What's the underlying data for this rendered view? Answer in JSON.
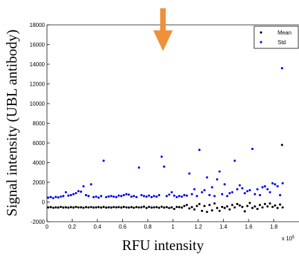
{
  "chart_data": {
    "type": "scatter",
    "ylabel": "Signal intensity (UBL antibody)",
    "xlabel": "RFU intensity",
    "x_multiplier": "x 10",
    "x_multiplier_exp": "5",
    "xlim": [
      0,
      2.0
    ],
    "ylim": [
      -2000,
      18000
    ],
    "x_ticks": [
      "0",
      "0.2",
      "0.4",
      "0.6",
      "0.8",
      "1",
      "1.2",
      "1.4",
      "1.6",
      "1.8"
    ],
    "y_ticks": [
      "-2000",
      "0",
      "2000",
      "4000",
      "6000",
      "8000",
      "10000",
      "12000",
      "14000",
      "16000",
      "18000"
    ],
    "legend_position": "top-right",
    "annotation": {
      "shape": "down-arrow",
      "color": "#f0903a"
    },
    "series": [
      {
        "name": "Mean",
        "color": "#000000",
        "points": [
          [
            0.01,
            -550
          ],
          [
            0.03,
            -520
          ],
          [
            0.05,
            -580
          ],
          [
            0.07,
            -540
          ],
          [
            0.09,
            -560
          ],
          [
            0.11,
            -500
          ],
          [
            0.13,
            -560
          ],
          [
            0.15,
            -530
          ],
          [
            0.17,
            -570
          ],
          [
            0.19,
            -520
          ],
          [
            0.21,
            -560
          ],
          [
            0.23,
            -500
          ],
          [
            0.25,
            -550
          ],
          [
            0.27,
            -530
          ],
          [
            0.29,
            -580
          ],
          [
            0.31,
            -520
          ],
          [
            0.33,
            -550
          ],
          [
            0.35,
            -510
          ],
          [
            0.37,
            -560
          ],
          [
            0.39,
            -540
          ],
          [
            0.41,
            -520
          ],
          [
            0.43,
            -560
          ],
          [
            0.45,
            -500
          ],
          [
            0.47,
            -570
          ],
          [
            0.49,
            -530
          ],
          [
            0.51,
            -560
          ],
          [
            0.53,
            -510
          ],
          [
            0.55,
            -540
          ],
          [
            0.57,
            -520
          ],
          [
            0.59,
            -560
          ],
          [
            0.61,
            -500
          ],
          [
            0.63,
            -540
          ],
          [
            0.65,
            -560
          ],
          [
            0.67,
            -520
          ],
          [
            0.69,
            -580
          ],
          [
            0.71,
            -510
          ],
          [
            0.73,
            -550
          ],
          [
            0.75,
            -530
          ],
          [
            0.77,
            -470
          ],
          [
            0.79,
            -600
          ],
          [
            0.81,
            -500
          ],
          [
            0.83,
            -560
          ],
          [
            0.85,
            -540
          ],
          [
            0.87,
            -520
          ],
          [
            0.89,
            -580
          ],
          [
            0.91,
            -480
          ],
          [
            0.93,
            -560
          ],
          [
            0.95,
            -520
          ],
          [
            0.97,
            -600
          ],
          [
            0.99,
            -540
          ],
          [
            1.01,
            -700
          ],
          [
            1.03,
            -500
          ],
          [
            1.05,
            -520
          ],
          [
            1.07,
            -560
          ],
          [
            1.09,
            -400
          ],
          [
            1.11,
            -300
          ],
          [
            1.13,
            -650
          ],
          [
            1.15,
            -520
          ],
          [
            1.17,
            -750
          ],
          [
            1.19,
            -400
          ],
          [
            1.21,
            -200
          ],
          [
            1.23,
            -900
          ],
          [
            1.25,
            -400
          ],
          [
            1.27,
            -1000
          ],
          [
            1.29,
            -300
          ],
          [
            1.31,
            -850
          ],
          [
            1.33,
            -150
          ],
          [
            1.35,
            -600
          ],
          [
            1.37,
            -900
          ],
          [
            1.39,
            -500
          ],
          [
            1.41,
            -600
          ],
          [
            1.43,
            -450
          ],
          [
            1.45,
            -750
          ],
          [
            1.47,
            -300
          ],
          [
            1.49,
            -550
          ],
          [
            1.51,
            -200
          ],
          [
            1.53,
            -350
          ],
          [
            1.55,
            -500
          ],
          [
            1.57,
            -950
          ],
          [
            1.59,
            -400
          ],
          [
            1.61,
            -100
          ],
          [
            1.63,
            -600
          ],
          [
            1.65,
            -450
          ],
          [
            1.67,
            -700
          ],
          [
            1.69,
            -300
          ],
          [
            1.71,
            -550
          ],
          [
            1.73,
            -200
          ],
          [
            1.75,
            -450
          ],
          [
            1.77,
            -150
          ],
          [
            1.79,
            -500
          ],
          [
            1.81,
            -350
          ],
          [
            1.83,
            -600
          ],
          [
            1.85,
            -250
          ],
          [
            1.87,
            -550
          ],
          [
            1.865,
            5800
          ]
        ]
      },
      {
        "name": "Std",
        "color": "#0000ee",
        "points": [
          [
            0.01,
            450
          ],
          [
            0.03,
            500
          ],
          [
            0.05,
            400
          ],
          [
            0.07,
            520
          ],
          [
            0.09,
            460
          ],
          [
            0.11,
            550
          ],
          [
            0.13,
            600
          ],
          [
            0.15,
            1000
          ],
          [
            0.17,
            650
          ],
          [
            0.19,
            700
          ],
          [
            0.21,
            800
          ],
          [
            0.23,
            900
          ],
          [
            0.25,
            1100
          ],
          [
            0.27,
            1050
          ],
          [
            0.29,
            1600
          ],
          [
            0.31,
            700
          ],
          [
            0.33,
            600
          ],
          [
            0.35,
            1800
          ],
          [
            0.37,
            500
          ],
          [
            0.39,
            550
          ],
          [
            0.41,
            450
          ],
          [
            0.43,
            600
          ],
          [
            0.45,
            4200
          ],
          [
            0.47,
            500
          ],
          [
            0.49,
            560
          ],
          [
            0.51,
            600
          ],
          [
            0.53,
            550
          ],
          [
            0.55,
            500
          ],
          [
            0.57,
            650
          ],
          [
            0.59,
            600
          ],
          [
            0.61,
            700
          ],
          [
            0.63,
            800
          ],
          [
            0.65,
            750
          ],
          [
            0.67,
            550
          ],
          [
            0.69,
            600
          ],
          [
            0.71,
            500
          ],
          [
            0.73,
            3500
          ],
          [
            0.75,
            700
          ],
          [
            0.77,
            600
          ],
          [
            0.79,
            550
          ],
          [
            0.81,
            650
          ],
          [
            0.83,
            500
          ],
          [
            0.85,
            600
          ],
          [
            0.87,
            550
          ],
          [
            0.89,
            700
          ],
          [
            0.91,
            4600
          ],
          [
            0.93,
            3600
          ],
          [
            0.95,
            600
          ],
          [
            0.97,
            750
          ],
          [
            0.99,
            1000
          ],
          [
            1.01,
            650
          ],
          [
            1.03,
            500
          ],
          [
            1.05,
            600
          ],
          [
            1.07,
            550
          ],
          [
            1.09,
            700
          ],
          [
            1.11,
            650
          ],
          [
            1.13,
            2900
          ],
          [
            1.15,
            800
          ],
          [
            1.17,
            1300
          ],
          [
            1.19,
            600
          ],
          [
            1.21,
            5300
          ],
          [
            1.23,
            1000
          ],
          [
            1.25,
            1200
          ],
          [
            1.27,
            2500
          ],
          [
            1.29,
            700
          ],
          [
            1.31,
            1500
          ],
          [
            1.33,
            600
          ],
          [
            1.35,
            2300
          ],
          [
            1.37,
            3100
          ],
          [
            1.39,
            800
          ],
          [
            1.41,
            1800
          ],
          [
            1.43,
            600
          ],
          [
            1.45,
            900
          ],
          [
            1.47,
            1000
          ],
          [
            1.49,
            4200
          ],
          [
            1.51,
            1300
          ],
          [
            1.53,
            1700
          ],
          [
            1.55,
            1400
          ],
          [
            1.57,
            900
          ],
          [
            1.59,
            1100
          ],
          [
            1.61,
            1200
          ],
          [
            1.63,
            5400
          ],
          [
            1.65,
            800
          ],
          [
            1.67,
            1300
          ],
          [
            1.69,
            700
          ],
          [
            1.71,
            1500
          ],
          [
            1.73,
            1600
          ],
          [
            1.75,
            1300
          ],
          [
            1.77,
            1000
          ],
          [
            1.79,
            1900
          ],
          [
            1.81,
            1800
          ],
          [
            1.83,
            1600
          ],
          [
            1.85,
            700
          ],
          [
            1.87,
            1900
          ],
          [
            1.865,
            13600
          ]
        ]
      }
    ]
  }
}
